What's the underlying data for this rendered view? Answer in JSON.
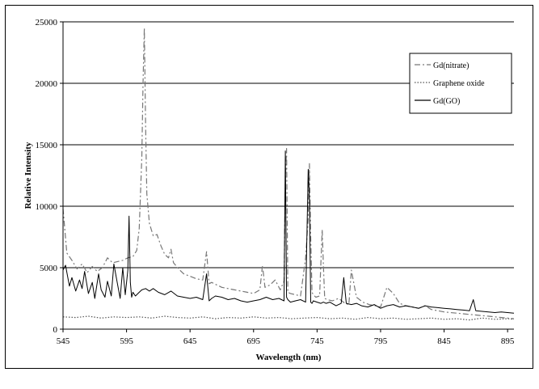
{
  "chart_data": {
    "type": "line",
    "title": "",
    "xlabel": "Wavelength (nm)",
    "ylabel": "Relative Intensity",
    "xlim": [
      545,
      900
    ],
    "ylim": [
      0,
      25000
    ],
    "xticks": [
      545,
      595,
      645,
      695,
      745,
      795,
      845,
      895
    ],
    "yticks": [
      0,
      5000,
      10000,
      15000,
      20000,
      25000
    ],
    "xtick_labels": [
      "545",
      "595",
      "645",
      "695",
      "745",
      "795",
      "845",
      "895"
    ],
    "ytick_labels": [
      "0",
      "5000",
      "10000",
      "15000",
      "20000",
      "25000"
    ],
    "grid": "horizontal",
    "legend_position": "top-right",
    "series": [
      {
        "name": "Gd(nitrate)",
        "style": "dash-dot",
        "color": "#777777",
        "x": [
          545,
          548,
          552,
          556,
          560,
          564,
          568,
          572,
          576,
          580,
          584,
          588,
          592,
          596,
          600,
          603,
          605,
          607,
          608,
          609,
          610,
          611,
          613,
          616,
          619,
          622,
          625,
          628,
          630,
          632,
          636,
          640,
          645,
          650,
          655,
          658,
          660,
          662,
          666,
          670,
          675,
          680,
          685,
          690,
          695,
          700,
          702,
          704,
          708,
          712,
          716,
          719,
          720,
          721,
          722,
          724,
          728,
          732,
          736,
          738,
          739,
          740,
          741,
          742,
          744,
          747,
          749,
          750,
          751,
          753,
          757,
          762,
          767,
          770,
          772,
          776,
          781,
          786,
          791,
          795,
          800,
          805,
          810,
          815,
          820,
          825,
          830,
          835,
          840,
          845,
          850,
          855,
          860,
          865,
          870,
          875,
          880,
          885,
          890,
          895,
          900
        ],
        "y": [
          9800,
          6200,
          5600,
          4900,
          5300,
          4600,
          5100,
          4700,
          5000,
          5800,
          5400,
          5500,
          5600,
          5800,
          5900,
          6400,
          8200,
          14000,
          20000,
          24500,
          16500,
          11000,
          8600,
          7600,
          7700,
          6800,
          6100,
          5800,
          6500,
          5400,
          4900,
          4500,
          4300,
          4100,
          4000,
          6300,
          3700,
          3800,
          3600,
          3400,
          3300,
          3200,
          3100,
          3000,
          2900,
          3200,
          5200,
          3400,
          3600,
          4000,
          3200,
          3900,
          12000,
          14700,
          3000,
          2900,
          2800,
          2700,
          5800,
          9000,
          13500,
          7500,
          3000,
          2800,
          2600,
          2700,
          8100,
          5200,
          2500,
          2400,
          2300,
          2500,
          2100,
          2000,
          4800,
          2600,
          2200,
          2000,
          1900,
          1800,
          3400,
          2900,
          2100,
          1900,
          1800,
          1700,
          1900,
          1600,
          1500,
          1400,
          1350,
          1300,
          1250,
          1200,
          1150,
          1100,
          1050,
          1000,
          950,
          900,
          850
        ]
      },
      {
        "name": "Graphene oxide",
        "style": "dotted",
        "color": "#555555",
        "x": [
          545,
          555,
          565,
          575,
          585,
          595,
          605,
          615,
          625,
          635,
          645,
          655,
          665,
          675,
          685,
          695,
          705,
          715,
          725,
          735,
          745,
          755,
          765,
          775,
          785,
          795,
          805,
          815,
          825,
          835,
          845,
          855,
          865,
          875,
          885,
          895,
          900
        ],
        "y": [
          1000,
          950,
          1050,
          900,
          1000,
          950,
          1000,
          900,
          1050,
          950,
          900,
          1000,
          850,
          950,
          900,
          1000,
          900,
          950,
          850,
          900,
          950,
          850,
          900,
          800,
          950,
          850,
          900,
          800,
          850,
          900,
          800,
          850,
          750,
          900,
          800,
          850,
          800
        ]
      },
      {
        "name": "Gd(GO)",
        "style": "solid",
        "color": "#000000",
        "x": [
          545,
          547,
          550,
          552,
          555,
          558,
          560,
          562,
          565,
          568,
          570,
          573,
          575,
          578,
          580,
          583,
          585,
          588,
          590,
          592,
          594,
          596,
          597,
          598,
          599,
          600,
          602,
          605,
          607,
          610,
          613,
          616,
          620,
          625,
          630,
          635,
          640,
          645,
          650,
          655,
          658,
          660,
          662,
          665,
          670,
          675,
          680,
          685,
          690,
          695,
          700,
          705,
          710,
          715,
          719,
          720,
          721,
          722,
          724,
          728,
          732,
          736,
          738,
          739,
          740,
          741,
          742,
          745,
          748,
          750,
          752,
          755,
          760,
          764,
          766,
          768,
          772,
          776,
          780,
          785,
          790,
          795,
          800,
          805,
          810,
          815,
          820,
          825,
          830,
          835,
          840,
          845,
          850,
          855,
          860,
          865,
          868,
          870,
          875,
          880,
          885,
          890,
          895,
          900
        ],
        "y": [
          4800,
          5200,
          3500,
          4200,
          3100,
          4000,
          3300,
          4700,
          2900,
          3800,
          2500,
          4500,
          3200,
          2600,
          3900,
          2700,
          5300,
          3600,
          2500,
          5000,
          2800,
          4800,
          9200,
          3800,
          2600,
          3000,
          2700,
          3000,
          3200,
          3300,
          3100,
          3300,
          3000,
          2800,
          3100,
          2700,
          2600,
          2500,
          2600,
          2400,
          4500,
          2300,
          2500,
          2700,
          2600,
          2400,
          2500,
          2300,
          2200,
          2300,
          2400,
          2600,
          2400,
          2500,
          2300,
          14500,
          2600,
          2400,
          2200,
          2300,
          2400,
          2200,
          13000,
          10500,
          2200,
          2100,
          2300,
          2200,
          2100,
          2200,
          2100,
          2200,
          1900,
          2100,
          4200,
          2100,
          2000,
          2100,
          1900,
          1800,
          2000,
          1700,
          1900,
          2000,
          1800,
          1900,
          1800,
          1700,
          1900,
          1800,
          1750,
          1700,
          1650,
          1600,
          1550,
          1500,
          2400,
          1500,
          1450,
          1400,
          1350,
          1400,
          1350,
          1300
        ]
      }
    ]
  }
}
